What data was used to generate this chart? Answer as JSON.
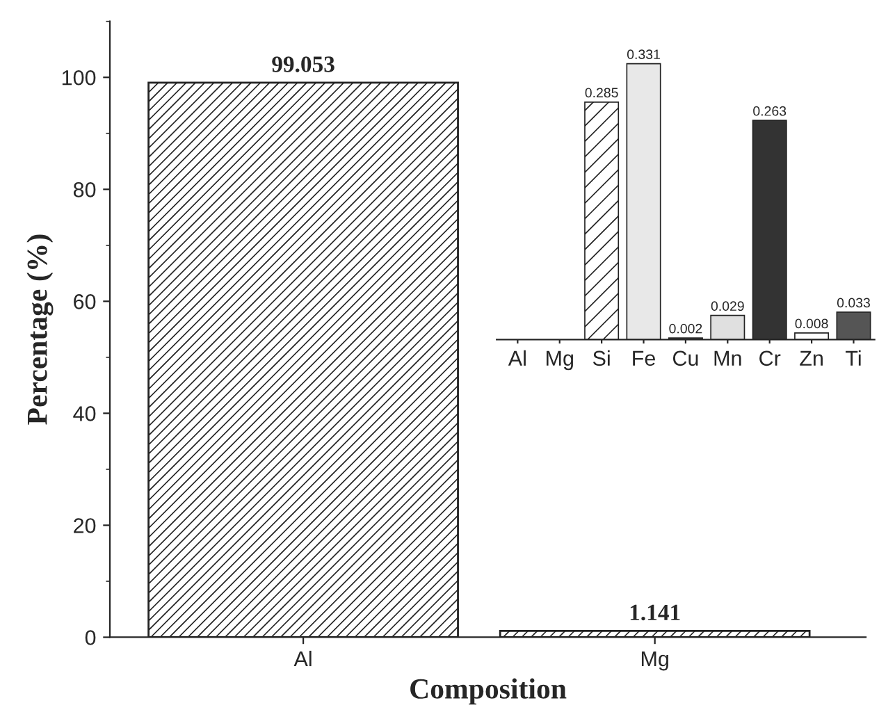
{
  "chart_data": [
    {
      "type": "bar",
      "categories": [
        "Al",
        "Mg"
      ],
      "xlabel": "Composition",
      "ylabel": "Percentage (%)",
      "values": [
        99.053,
        1.141
      ],
      "color": "#222222",
      "ylim": [
        0,
        110
      ],
      "yticks": [
        0,
        20,
        40,
        60,
        80,
        100
      ],
      "data_labels": true,
      "grid": false,
      "legend": false
    },
    {
      "type": "bar",
      "categories": [
        "Al",
        "Mg",
        "Si",
        "Fe",
        "Cu",
        "Mn",
        "Cr",
        "Zn",
        "Ti"
      ],
      "values": [
        null,
        null,
        0.285,
        0.331,
        0.002,
        0.029,
        0.263,
        0.008,
        0.033
      ],
      "value_labels": [
        null,
        null,
        "0.285",
        "0.331",
        "0.002",
        "0.029",
        "0.263",
        "0.008",
        "0.033"
      ],
      "colors": [
        "#b0b0b0",
        "#222222",
        "#222222",
        "#e8e8e8",
        "#ffffff",
        "#e0e0e0",
        "#333333",
        "#ffffff",
        "#555555"
      ],
      "grid": false,
      "legend": false
    }
  ]
}
